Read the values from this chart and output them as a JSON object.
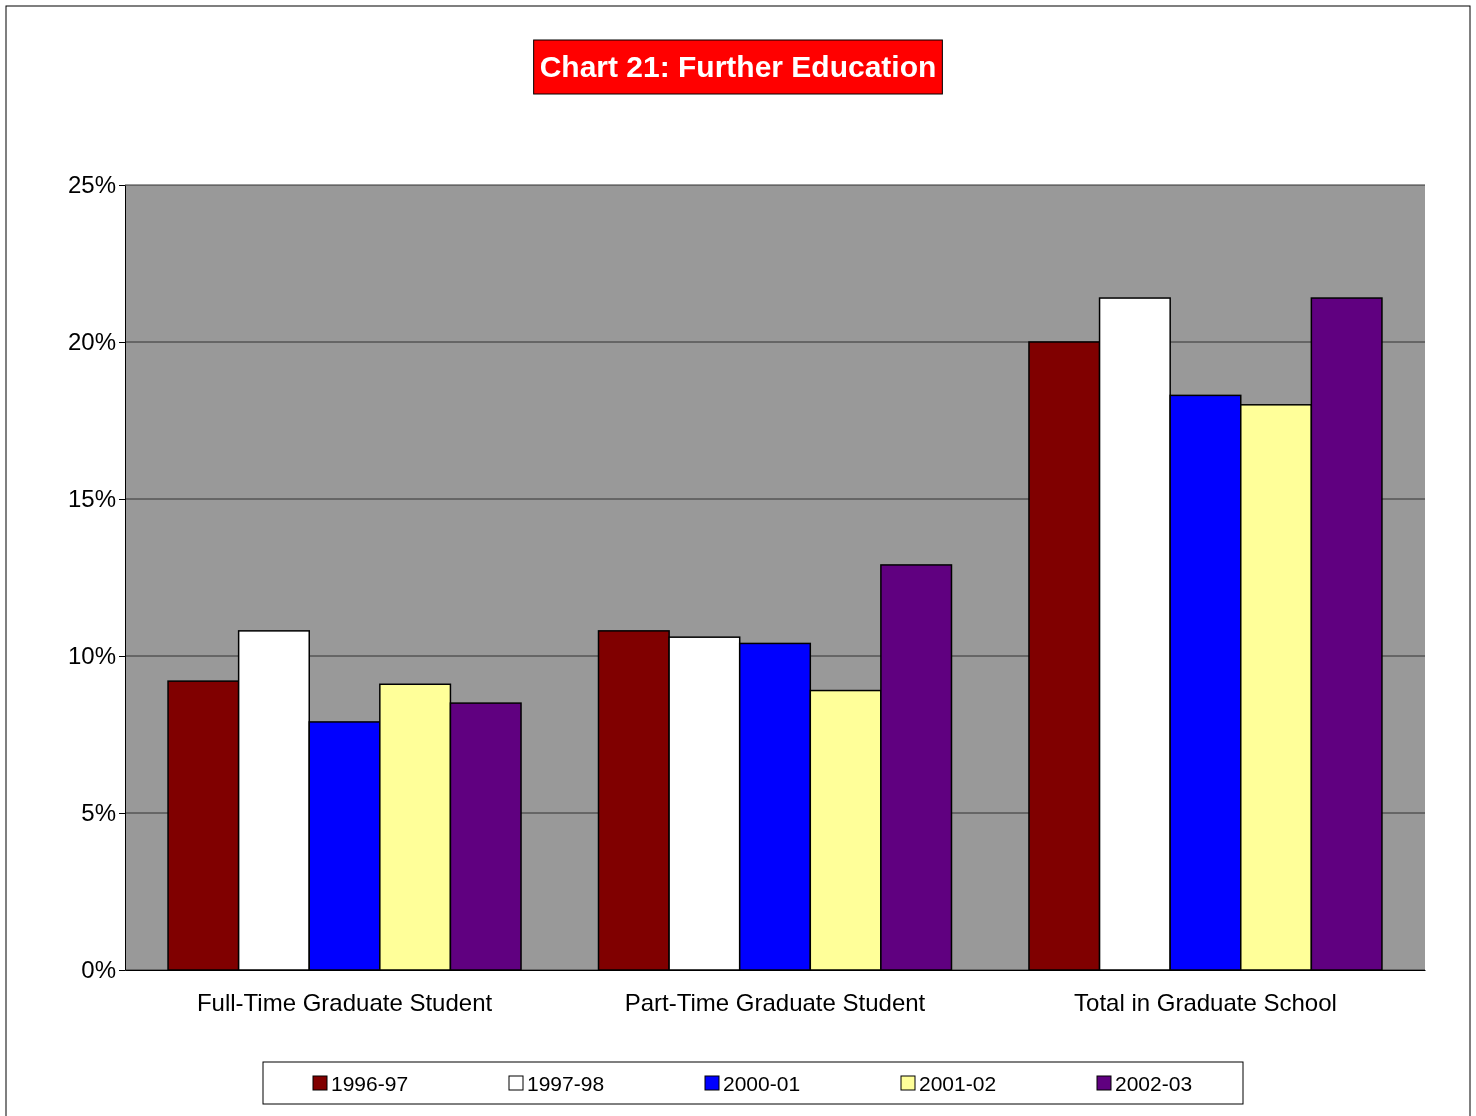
{
  "chart_data": {
    "type": "bar",
    "title": "Chart 21:  Further Education",
    "categories": [
      "Full-Time Graduate Student",
      "Part-Time Graduate Student",
      "Total in Graduate School"
    ],
    "series": [
      {
        "name": "1996-97",
        "color": "#800000",
        "values": [
          9.2,
          10.8,
          20.0
        ]
      },
      {
        "name": "1997-98",
        "color": "#ffffff",
        "values": [
          10.8,
          10.6,
          21.4
        ]
      },
      {
        "name": "2000-01",
        "color": "#0000ff",
        "values": [
          7.9,
          10.4,
          18.3
        ]
      },
      {
        "name": "2001-02",
        "color": "#ffff99",
        "values": [
          9.1,
          8.9,
          18.0
        ]
      },
      {
        "name": "2002-03",
        "color": "#600080",
        "values": [
          8.5,
          12.9,
          21.4
        ]
      }
    ],
    "ylim": [
      0,
      25
    ],
    "yticks": [
      {
        "value": 0,
        "label": "0%"
      },
      {
        "value": 5,
        "label": "5%"
      },
      {
        "value": 10,
        "label": "10%"
      },
      {
        "value": 15,
        "label": "15%"
      },
      {
        "value": 20,
        "label": "20%"
      },
      {
        "value": 25,
        "label": "25%"
      }
    ],
    "grid": "y",
    "legend": "bottom"
  }
}
